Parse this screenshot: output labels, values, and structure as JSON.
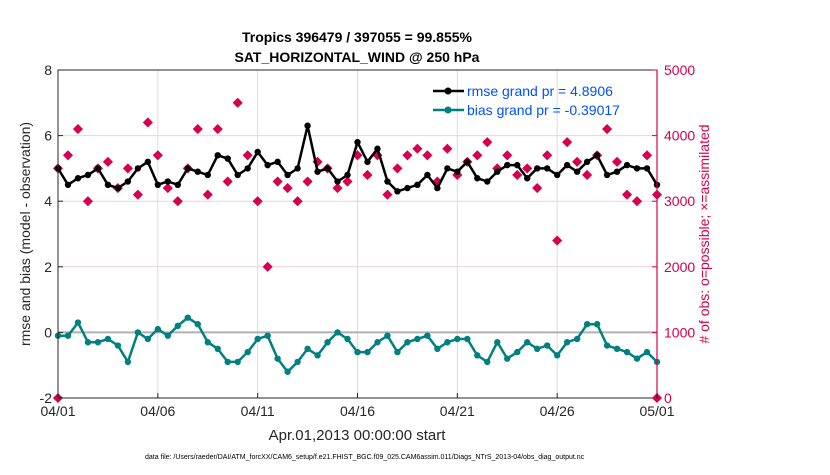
{
  "chart_data": {
    "type": "line",
    "title": [
      "Tropics 396479 / 397055 = 99.855%",
      "SAT_HORIZONTAL_WIND @ 250 hPa"
    ],
    "xlabel": "Apr.01,2013 00:00:00 start",
    "ylabel": "rmse and bias (model - observation)",
    "ylabel_right": "# of obs: o=possible; ×=assimilated",
    "footnote": "data file: /Users/raeder/DAI/ATM_forcXX/CAM6_setup/f.e21.FHIST_BGC.f09_025.CAM6assim.011/Diags_NTrS_2013-04/obs_diag_output.nc",
    "xlim": [
      0,
      30
    ],
    "ylim": [
      -2,
      8
    ],
    "ylim_right": [
      0,
      5000
    ],
    "xticks": [
      0,
      5,
      10,
      15,
      20,
      25,
      30
    ],
    "xtick_labels": [
      "04/01",
      "04/06",
      "04/11",
      "04/16",
      "04/21",
      "04/26",
      "05/01"
    ],
    "yticks": [
      -2,
      0,
      2,
      4,
      6,
      8
    ],
    "ytick_labels": [
      "-2",
      "0",
      "2",
      "4",
      "6",
      "8"
    ],
    "yticks_right": [
      0,
      1000,
      2000,
      3000,
      4000,
      5000
    ],
    "ytick_labels_right": [
      "0",
      "1000",
      "2000",
      "3000",
      "4000",
      "5000"
    ],
    "grid": true,
    "legend_position": "top-right",
    "x_days": [
      0,
      0.5,
      1,
      1.5,
      2,
      2.5,
      3,
      3.5,
      4,
      4.5,
      5,
      5.5,
      6,
      6.5,
      7,
      7.5,
      8,
      8.5,
      9,
      9.5,
      10,
      10.5,
      11,
      11.5,
      12,
      12.5,
      13,
      13.5,
      14,
      14.5,
      15,
      15.5,
      16,
      16.5,
      17,
      17.5,
      18,
      18.5,
      19,
      19.5,
      20,
      20.5,
      21,
      21.5,
      22,
      22.5,
      23,
      23.5,
      24,
      24.5,
      25,
      25.5,
      26,
      26.5,
      27,
      27.5,
      28,
      28.5,
      29,
      29.5,
      30
    ],
    "series": [
      {
        "name": "rmse grand pr = 4.8906",
        "color": "#000000",
        "values": [
          5.0,
          4.5,
          4.7,
          4.8,
          5.0,
          4.5,
          4.4,
          4.6,
          5.0,
          5.2,
          4.5,
          4.6,
          4.5,
          5.0,
          4.9,
          4.8,
          5.4,
          5.3,
          4.8,
          5.0,
          5.5,
          5.1,
          5.2,
          4.8,
          5.0,
          6.3,
          4.9,
          5.0,
          4.6,
          4.8,
          5.8,
          5.2,
          5.6,
          4.6,
          4.3,
          4.4,
          4.5,
          4.8,
          4.4,
          5.0,
          4.9,
          5.2,
          4.7,
          4.6,
          4.9,
          5.1,
          5.1,
          4.7,
          5.0,
          5.0,
          4.8,
          5.1,
          4.9,
          5.2,
          5.4,
          4.8,
          4.9,
          5.1,
          5.0,
          5.0,
          4.5
        ]
      },
      {
        "name": "bias grand pr = -0.39017",
        "color": "#008080",
        "values": [
          -0.1,
          -0.1,
          0.3,
          -0.3,
          -0.3,
          -0.2,
          -0.4,
          -0.9,
          0.0,
          -0.2,
          0.1,
          -0.1,
          0.2,
          0.45,
          0.25,
          -0.3,
          -0.5,
          -0.9,
          -0.9,
          -0.6,
          -0.2,
          -0.1,
          -0.8,
          -1.2,
          -0.9,
          -0.5,
          -0.7,
          -0.3,
          0.0,
          -0.2,
          -0.6,
          -0.6,
          -0.3,
          -0.1,
          -0.6,
          -0.3,
          -0.2,
          -0.1,
          -0.5,
          -0.3,
          -0.2,
          -0.2,
          -0.7,
          -0.9,
          -0.3,
          -0.8,
          -0.6,
          -0.3,
          -0.5,
          -0.4,
          -0.7,
          -0.3,
          -0.2,
          0.25,
          0.25,
          -0.4,
          -0.5,
          -0.6,
          -0.8,
          -0.6,
          -0.9
        ]
      },
      {
        "name": "obs count",
        "axis": "right",
        "color": "#d6004f",
        "values": [
          3500,
          3700,
          4100,
          3000,
          3500,
          3600,
          3200,
          3500,
          3100,
          4200,
          3700,
          3200,
          3000,
          3500,
          4100,
          3100,
          4100,
          3300,
          4500,
          3700,
          3000,
          2000,
          3300,
          3200,
          3000,
          3300,
          3600,
          3500,
          3200,
          3300,
          3700,
          3400,
          3700,
          3100,
          3500,
          3700,
          3800,
          3700,
          3300,
          3800,
          3400,
          3600,
          3700,
          3900,
          3500,
          3700,
          3400,
          3500,
          3200,
          3700,
          2400,
          3900,
          3600,
          3400,
          3700,
          4100,
          3600,
          3100,
          3000,
          3700,
          3100
        ],
        "extra_points": [
          {
            "x": 0,
            "y": 0
          },
          {
            "x": 30,
            "y": 0
          }
        ]
      }
    ]
  }
}
